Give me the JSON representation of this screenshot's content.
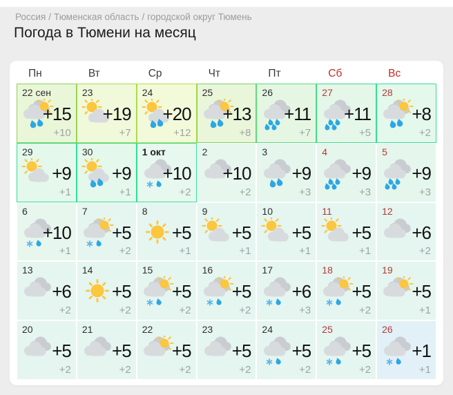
{
  "page": {
    "breadcrumb": {
      "items": [
        "Россия",
        "Тюменская область",
        "городской округ Тюмень"
      ],
      "separator": "/"
    },
    "title": "Погода в Тюмени на месяц"
  },
  "colors": {
    "weekend_header_red": "#c32b27",
    "weekend_date_red": "#b23a38",
    "accent_border_green": "#2fdd97",
    "accent_border_yellowgreen": "#a6d94e",
    "sun_yellow": "#fcc63d",
    "rain_drop_blue": "#2da7e4",
    "night_temp_gray": "#9da3a7"
  },
  "calendar": {
    "weekdays": [
      {
        "label": "Пн",
        "weekend": false
      },
      {
        "label": "Вт",
        "weekend": false
      },
      {
        "label": "Ср",
        "weekend": false
      },
      {
        "label": "Чт",
        "weekend": false
      },
      {
        "label": "Пт",
        "weekend": false
      },
      {
        "label": "Сб",
        "weekend": true
      },
      {
        "label": "Вс",
        "weekend": true
      }
    ],
    "cells": [
      {
        "date": "22 сен",
        "day": "+15",
        "night": "+10",
        "icon": "cloud-sun-rain2",
        "bg": "#eaf6d8",
        "border": "#8fd155",
        "weekend": false
      },
      {
        "date": "23",
        "day": "+19",
        "night": "+7",
        "icon": "sun-cloud",
        "bg": "#f0f9d9",
        "border": "#a6d94e",
        "weekend": false
      },
      {
        "date": "24",
        "day": "+20",
        "night": "+12",
        "icon": "sun-cloud-rain2",
        "bg": "#f3fada",
        "border": "#b5dd4c",
        "weekend": false
      },
      {
        "date": "25",
        "day": "+13",
        "night": "+8",
        "icon": "cloud-sun-rain2",
        "bg": "#e9f6da",
        "border": "#7bd164",
        "weekend": false
      },
      {
        "date": "26",
        "day": "+11",
        "night": "+7",
        "icon": "clouds-rain4",
        "bg": "#e5f7e3",
        "border": "#52da7f",
        "weekend": false
      },
      {
        "date": "27",
        "day": "+11",
        "night": "+5",
        "icon": "clouds-rain4",
        "bg": "#e4f7e9",
        "border": "#3cdb8d",
        "weekend": true
      },
      {
        "date": "28",
        "day": "+8",
        "night": "+2",
        "icon": "cloud-sun-rain2",
        "bg": "#e5f8ec",
        "border": "#2fdd97",
        "weekend": true
      },
      {
        "date": "29",
        "day": "+9",
        "night": "+1",
        "icon": "sun-cloud",
        "bg": "#e5f8ec",
        "border": "#2fdd97",
        "weekend": false
      },
      {
        "date": "30",
        "day": "+9",
        "night": "+1",
        "icon": "sun-cloud-rain2",
        "bg": "#e5f8ec",
        "border": "#2fdd97",
        "weekend": false
      },
      {
        "date": "1 окт",
        "bold": true,
        "day": "+10",
        "night": "+2",
        "icon": "clouds-snowrain",
        "bg": "#e7f8ee",
        "border": "#2fdd97",
        "weekend": false
      },
      {
        "date": "2",
        "day": "+10",
        "night": "+2",
        "icon": "clouds",
        "bg": "#e7f7ee",
        "weekend": false
      },
      {
        "date": "3",
        "day": "+9",
        "night": "+3",
        "icon": "clouds-rain2",
        "bg": "#e5f6ec",
        "weekend": false
      },
      {
        "date": "4",
        "day": "+9",
        "night": "+3",
        "icon": "clouds-rain4",
        "bg": "#e5f6ec",
        "weekend": true
      },
      {
        "date": "5",
        "day": "+9",
        "night": "+3",
        "icon": "clouds-rain4",
        "bg": "#e5f6ec",
        "weekend": true
      },
      {
        "date": "6",
        "day": "+10",
        "night": "+1",
        "icon": "clouds-snowrain",
        "bg": "#e7f7ee",
        "weekend": false
      },
      {
        "date": "7",
        "day": "+5",
        "night": "+2",
        "icon": "cloud-sun-snowrain",
        "bg": "#e5f5f0",
        "weekend": false
      },
      {
        "date": "8",
        "day": "+5",
        "night": "+1",
        "icon": "sun",
        "bg": "#e5f5f0",
        "weekend": false
      },
      {
        "date": "9",
        "day": "+5",
        "night": "+1",
        "icon": "sun-cloud",
        "bg": "#e5f5f0",
        "weekend": false
      },
      {
        "date": "10",
        "day": "+5",
        "night": "+1",
        "icon": "sun-cloud",
        "bg": "#e5f5f0",
        "weekend": false
      },
      {
        "date": "11",
        "day": "+5",
        "night": "+1",
        "icon": "sun-cloud",
        "bg": "#e5f5f0",
        "weekend": true
      },
      {
        "date": "12",
        "day": "+6",
        "night": "+2",
        "icon": "clouds",
        "bg": "#e5f5f0",
        "weekend": true
      },
      {
        "date": "13",
        "day": "+6",
        "night": "+2",
        "icon": "clouds",
        "bg": "#e5f5f0",
        "weekend": false
      },
      {
        "date": "14",
        "day": "+5",
        "night": "+2",
        "icon": "sun",
        "bg": "#e5f5f0",
        "weekend": false
      },
      {
        "date": "15",
        "day": "+5",
        "night": "+2",
        "icon": "cloud-sun-snowrain",
        "bg": "#e5f5f0",
        "weekend": false
      },
      {
        "date": "16",
        "day": "+5",
        "night": "+2",
        "icon": "cloud-sun-snowrain",
        "bg": "#e5f5f0",
        "weekend": false
      },
      {
        "date": "17",
        "day": "+6",
        "night": "+3",
        "icon": "clouds-snowrain",
        "bg": "#e5f5f0",
        "weekend": false
      },
      {
        "date": "18",
        "day": "+5",
        "night": "+2",
        "icon": "cloud-sun-snowrain",
        "bg": "#e5f5f0",
        "weekend": true
      },
      {
        "date": "19",
        "day": "+5",
        "night": "+1",
        "icon": "cloud-sun",
        "bg": "#e5f5f0",
        "weekend": true
      },
      {
        "date": "20",
        "day": "+5",
        "night": "+2",
        "icon": "clouds",
        "bg": "#e5f5f0",
        "weekend": false
      },
      {
        "date": "21",
        "day": "+5",
        "night": "+2",
        "icon": "clouds",
        "bg": "#e5f5f0",
        "weekend": false
      },
      {
        "date": "22",
        "day": "+5",
        "night": "+2",
        "icon": "cloud-sun",
        "bg": "#e5f5f0",
        "weekend": false
      },
      {
        "date": "23",
        "day": "+5",
        "night": "+2",
        "icon": "clouds",
        "bg": "#e5f5f0",
        "weekend": false
      },
      {
        "date": "24",
        "day": "+5",
        "night": "+2",
        "icon": "clouds-snowrain",
        "bg": "#e5f5f0",
        "weekend": false
      },
      {
        "date": "25",
        "day": "+5",
        "night": "+2",
        "icon": "clouds-snowrain",
        "bg": "#e5f5f0",
        "weekend": true
      },
      {
        "date": "26",
        "day": "+1",
        "night": "+1",
        "icon": "clouds-snowrain",
        "bg": "#e2f0f7",
        "weekend": true
      }
    ]
  }
}
